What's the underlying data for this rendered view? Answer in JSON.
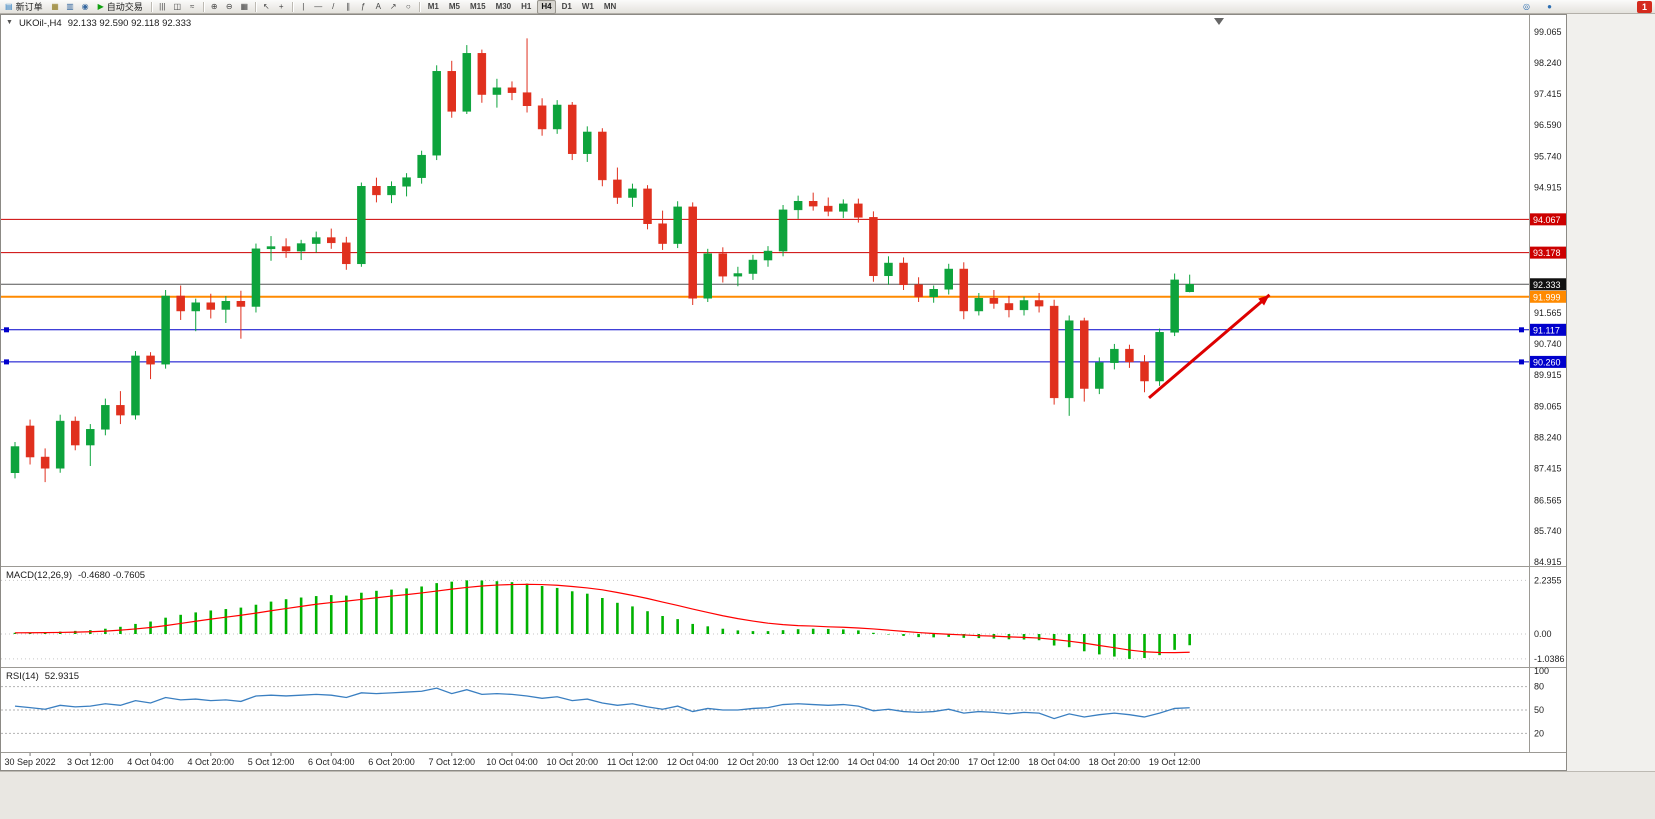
{
  "toolbar": {
    "new_order_label": "新订单",
    "auto_trading_label": "自动交易",
    "icons_left": [
      {
        "name": "charts-window-icon",
        "glyph": "▦",
        "color": "#8f7a1e"
      },
      {
        "name": "profiles-icon",
        "glyph": "▥",
        "color": "#35679f"
      },
      {
        "name": "sound-alert-icon",
        "glyph": "◉",
        "color": "#35679f"
      }
    ],
    "icons_chart_type": [
      {
        "name": "bar-chart-icon",
        "glyph": "|||",
        "color": "#444444"
      },
      {
        "name": "candlestick-icon",
        "glyph": "◫",
        "color": "#444444"
      },
      {
        "name": "line-chart-icon",
        "glyph": "≈",
        "color": "#444444"
      }
    ],
    "icons_zoom": [
      {
        "name": "zoom-in-icon",
        "glyph": "⊕",
        "color": "#444444"
      },
      {
        "name": "zoom-out-icon",
        "glyph": "⊖",
        "color": "#444444"
      },
      {
        "name": "tile-windows-icon",
        "glyph": "▦",
        "color": "#444444"
      }
    ],
    "icons_cursor": [
      {
        "name": "cursor-icon",
        "glyph": "↖",
        "color": "#444444"
      },
      {
        "name": "crosshair-icon",
        "glyph": "+",
        "color": "#444444"
      }
    ],
    "icons_draw": [
      {
        "name": "vertical-line-icon",
        "glyph": "|",
        "color": "#444444"
      },
      {
        "name": "horizontal-line-icon",
        "glyph": "—",
        "color": "#444444"
      },
      {
        "name": "trendline-icon",
        "glyph": "/",
        "color": "#444444"
      },
      {
        "name": "channel-icon",
        "glyph": "∥",
        "color": "#444444"
      },
      {
        "name": "fibonacci-icon",
        "glyph": "ƒ",
        "color": "#444444"
      },
      {
        "name": "text-tool-icon",
        "glyph": "A",
        "color": "#444444"
      },
      {
        "name": "arrow-tool-icon",
        "glyph": "↗",
        "color": "#444444"
      },
      {
        "name": "shapes-icon",
        "glyph": "○",
        "color": "#444444"
      }
    ],
    "timeframes": [
      "M1",
      "M5",
      "M15",
      "M30",
      "H1",
      "H4",
      "D1",
      "W1",
      "MN"
    ],
    "active_timeframe": "H4",
    "icons_right": [
      {
        "name": "search-icon",
        "glyph": "◎",
        "color": "#2e6fb2"
      },
      {
        "name": "chat-icon",
        "glyph": "●",
        "color": "#2e6fb2"
      }
    ],
    "badge_count": "1",
    "new_order_icon_glyph": "▤",
    "auto_trading_icon_glyph": "▶"
  },
  "chart": {
    "menu_icon_glyph": "▼",
    "title": "UKOil-,H4",
    "ohlc_text": "92.133 92.590 92.118 92.333",
    "macd_label": "MACD(12,26,9)",
    "macd_values": "-0.4680 -0.7605",
    "rsi_label": "RSI(14)",
    "rsi_value": "52.9315"
  },
  "colors": {
    "bull": "#0da33c",
    "bear": "#e0301e",
    "macd_histogram": "#00b200",
    "macd_signal": "#ff0000",
    "rsi_line": "#3a7fc1",
    "level_red": "#cc0000",
    "level_blue": "#0000cc",
    "level_orange": "#ff8a00",
    "bid_line": "#555555"
  },
  "chart_data": [
    {
      "type": "candlestick",
      "symbol": "UKOil-",
      "period": "H4",
      "last_ohlc": {
        "open": "92.133",
        "high": "92.590",
        "low": "92.118",
        "close": "92.333"
      },
      "ylim": [
        84.81,
        99.47
      ],
      "y_ticks": [
        "99.065",
        "98.240",
        "97.415",
        "96.590",
        "95.740",
        "94.915",
        "91.565",
        "90.740",
        "89.915",
        "89.065",
        "88.240",
        "87.415",
        "86.565",
        "85.740",
        "84.915"
      ],
      "x_labels": [
        "30 Sep 2022",
        "3 Oct 12:00",
        "4 Oct 04:00",
        "4 Oct 20:00",
        "5 Oct 12:00",
        "6 Oct 04:00",
        "6 Oct 20:00",
        "7 Oct 12:00",
        "10 Oct 04:00",
        "10 Oct 20:00",
        "11 Oct 12:00",
        "12 Oct 04:00",
        "12 Oct 20:00",
        "13 Oct 12:00",
        "14 Oct 04:00",
        "14 Oct 20:00",
        "17 Oct 12:00",
        "18 Oct 04:00",
        "18 Oct 20:00",
        "19 Oct 12:00"
      ],
      "x_label_start": 1,
      "x_label_step": 4,
      "candles": [
        [
          87.3,
          88.12,
          87.15,
          88.0
        ],
        [
          88.55,
          88.72,
          87.52,
          87.72
        ],
        [
          87.72,
          87.95,
          87.05,
          87.42
        ],
        [
          87.42,
          88.85,
          87.3,
          88.68
        ],
        [
          88.68,
          88.8,
          87.9,
          88.04
        ],
        [
          88.04,
          88.6,
          87.48,
          88.46
        ],
        [
          88.46,
          89.28,
          88.3,
          89.1
        ],
        [
          89.1,
          89.48,
          88.6,
          88.84
        ],
        [
          88.84,
          90.55,
          88.72,
          90.42
        ],
        [
          90.42,
          90.52,
          89.8,
          90.2
        ],
        [
          90.2,
          92.18,
          90.08,
          92.02
        ],
        [
          92.02,
          92.3,
          91.38,
          91.62
        ],
        [
          91.62,
          91.95,
          91.08,
          91.84
        ],
        [
          91.84,
          92.08,
          91.42,
          91.66
        ],
        [
          91.66,
          92.02,
          91.3,
          91.88
        ],
        [
          91.88,
          92.16,
          90.88,
          91.74
        ],
        [
          91.74,
          93.42,
          91.58,
          93.28
        ],
        [
          93.28,
          93.62,
          92.96,
          93.34
        ],
        [
          93.34,
          93.56,
          93.04,
          93.22
        ],
        [
          93.22,
          93.52,
          92.98,
          93.42
        ],
        [
          93.42,
          93.74,
          93.18,
          93.58
        ],
        [
          93.58,
          93.82,
          93.28,
          93.44
        ],
        [
          93.44,
          93.6,
          92.72,
          92.88
        ],
        [
          92.88,
          95.05,
          92.8,
          94.95
        ],
        [
          94.95,
          95.18,
          94.52,
          94.72
        ],
        [
          94.72,
          95.08,
          94.5,
          94.95
        ],
        [
          94.95,
          95.3,
          94.68,
          95.18
        ],
        [
          95.18,
          95.9,
          95.02,
          95.78
        ],
        [
          95.78,
          98.18,
          95.65,
          98.02
        ],
        [
          98.02,
          98.3,
          96.78,
          96.95
        ],
        [
          96.95,
          98.72,
          96.88,
          98.5
        ],
        [
          98.5,
          98.6,
          97.18,
          97.4
        ],
        [
          97.4,
          97.82,
          97.05,
          97.58
        ],
        [
          97.58,
          97.75,
          97.25,
          97.45
        ],
        [
          97.45,
          98.9,
          96.92,
          97.1
        ],
        [
          97.1,
          97.3,
          96.3,
          96.48
        ],
        [
          96.48,
          97.25,
          96.35,
          97.12
        ],
        [
          97.12,
          97.2,
          95.65,
          95.82
        ],
        [
          95.82,
          96.55,
          95.6,
          96.4
        ],
        [
          96.4,
          96.5,
          94.95,
          95.12
        ],
        [
          95.12,
          95.45,
          94.48,
          94.65
        ],
        [
          94.65,
          95.02,
          94.4,
          94.88
        ],
        [
          94.88,
          94.98,
          93.8,
          93.95
        ],
        [
          93.95,
          94.3,
          93.25,
          93.42
        ],
        [
          93.42,
          94.55,
          93.3,
          94.4
        ],
        [
          94.4,
          94.52,
          91.78,
          91.96
        ],
        [
          91.96,
          93.28,
          91.86,
          93.15
        ],
        [
          93.15,
          93.32,
          92.38,
          92.55
        ],
        [
          92.55,
          92.8,
          92.28,
          92.62
        ],
        [
          92.62,
          93.12,
          92.45,
          92.98
        ],
        [
          92.98,
          93.35,
          92.8,
          93.22
        ],
        [
          93.22,
          94.45,
          93.08,
          94.32
        ],
        [
          94.32,
          94.7,
          94.08,
          94.55
        ],
        [
          94.55,
          94.78,
          94.3,
          94.42
        ],
        [
          94.42,
          94.65,
          94.15,
          94.28
        ],
        [
          94.28,
          94.6,
          94.1,
          94.48
        ],
        [
          94.48,
          94.62,
          93.98,
          94.12
        ],
        [
          94.12,
          94.28,
          92.4,
          92.56
        ],
        [
          92.56,
          93.08,
          92.32,
          92.9
        ],
        [
          92.9,
          93.05,
          92.18,
          92.32
        ],
        [
          92.32,
          92.52,
          91.86,
          92.0
        ],
        [
          92.0,
          92.3,
          91.84,
          92.2
        ],
        [
          92.2,
          92.88,
          92.06,
          92.74
        ],
        [
          92.74,
          92.92,
          91.4,
          91.62
        ],
        [
          91.62,
          92.1,
          91.5,
          91.96
        ],
        [
          91.96,
          92.18,
          91.68,
          91.82
        ],
        [
          91.82,
          92.02,
          91.45,
          91.65
        ],
        [
          91.65,
          92.0,
          91.5,
          91.9
        ],
        [
          91.9,
          92.1,
          91.58,
          91.75
        ],
        [
          91.75,
          91.92,
          89.12,
          89.3
        ],
        [
          89.3,
          91.5,
          88.82,
          91.36
        ],
        [
          91.36,
          91.44,
          89.2,
          89.55
        ],
        [
          89.55,
          90.38,
          89.4,
          90.24
        ],
        [
          90.24,
          90.74,
          90.06,
          90.6
        ],
        [
          90.6,
          90.72,
          90.1,
          90.26
        ],
        [
          90.26,
          90.44,
          89.45,
          89.75
        ],
        [
          89.75,
          91.15,
          89.62,
          91.05
        ],
        [
          91.05,
          92.62,
          90.95,
          92.45
        ],
        [
          92.133,
          92.59,
          92.118,
          92.333
        ]
      ],
      "hlines": [
        {
          "price": 94.067,
          "color": "#cc0000",
          "width": 1,
          "tag": "94.067",
          "tag_color": "#cc0000"
        },
        {
          "price": 93.178,
          "color": "#cc0000",
          "width": 1,
          "tag": "93.178",
          "tag_color": "#cc0000"
        },
        {
          "price": 92.333,
          "color": "#555555",
          "width": 1,
          "tag": "92.333",
          "tag_color": "#111111",
          "role": "bid"
        },
        {
          "price": 91.999,
          "color": "#ff8a00",
          "width": 2,
          "tag": "91.999",
          "tag_color": "#ff8a00"
        },
        {
          "price": 91.117,
          "color": "#0000cc",
          "width": 1,
          "tag": "91.117",
          "tag_color": "#0000cc",
          "handles": true
        },
        {
          "price": 90.26,
          "color": "#0000cc",
          "width": 1,
          "tag": "90.260",
          "tag_color": "#0000cc",
          "handles": true
        }
      ],
      "arrow": {
        "from_index": 75.3,
        "from_price": 89.3,
        "to_index": 83.3,
        "to_price": 92.05,
        "color": "#dd0000"
      }
    },
    {
      "type": "bar",
      "name": "MACD",
      "params": "12,26,9",
      "current_macd": -0.468,
      "current_signal": -0.7605,
      "y_ticks": [
        "2.2355",
        "0.00",
        "-1.0386"
      ],
      "histogram": [
        0.05,
        0.06,
        0.07,
        0.1,
        0.13,
        0.16,
        0.22,
        0.3,
        0.42,
        0.52,
        0.68,
        0.8,
        0.9,
        0.98,
        1.04,
        1.1,
        1.22,
        1.35,
        1.45,
        1.52,
        1.58,
        1.62,
        1.6,
        1.72,
        1.8,
        1.85,
        1.9,
        1.98,
        2.12,
        2.18,
        2.2355,
        2.23,
        2.2,
        2.16,
        2.1,
        2.0,
        1.92,
        1.78,
        1.68,
        1.5,
        1.3,
        1.15,
        0.95,
        0.75,
        0.62,
        0.42,
        0.32,
        0.22,
        0.15,
        0.12,
        0.12,
        0.16,
        0.2,
        0.22,
        0.21,
        0.19,
        0.15,
        0.05,
        -0.02,
        -0.08,
        -0.13,
        -0.14,
        -0.12,
        -0.16,
        -0.17,
        -0.19,
        -0.22,
        -0.23,
        -0.26,
        -0.48,
        -0.55,
        -0.72,
        -0.85,
        -0.94,
        -1.0386,
        -1.0,
        -0.88,
        -0.66,
        -0.468
      ],
      "signal": [
        0.05,
        0.052,
        0.056,
        0.065,
        0.078,
        0.095,
        0.12,
        0.16,
        0.21,
        0.27,
        0.35,
        0.44,
        0.53,
        0.62,
        0.7,
        0.78,
        0.87,
        0.97,
        1.06,
        1.15,
        1.24,
        1.31,
        1.37,
        1.44,
        1.51,
        1.58,
        1.64,
        1.71,
        1.79,
        1.87,
        1.94,
        2.0,
        2.04,
        2.06,
        2.07,
        2.06,
        2.03,
        1.98,
        1.92,
        1.84,
        1.73,
        1.61,
        1.48,
        1.33,
        1.19,
        1.04,
        0.9,
        0.76,
        0.64,
        0.54,
        0.45,
        0.39,
        0.35,
        0.33,
        0.3,
        0.28,
        0.25,
        0.21,
        0.16,
        0.11,
        0.06,
        0.02,
        -0.01,
        -0.04,
        -0.07,
        -0.09,
        -0.12,
        -0.14,
        -0.17,
        -0.23,
        -0.3,
        -0.38,
        -0.48,
        -0.57,
        -0.67,
        -0.74,
        -0.77,
        -0.775,
        -0.7605
      ]
    },
    {
      "type": "line",
      "name": "RSI",
      "params": "14",
      "current": 52.9315,
      "levels": [
        80,
        50,
        20
      ],
      "y_ticks": [
        "100",
        "80",
        "50",
        "20"
      ],
      "values": [
        55,
        53,
        51,
        56,
        54,
        55,
        58,
        56,
        62,
        59,
        66,
        63,
        64,
        62,
        63,
        61,
        68,
        69,
        68,
        69,
        70,
        69,
        66,
        72,
        71,
        72,
        73,
        74,
        78,
        71,
        76,
        70,
        71,
        70,
        68,
        65,
        67,
        62,
        64,
        59,
        56,
        58,
        54,
        51,
        55,
        48,
        52,
        50,
        50,
        52,
        53,
        57,
        58,
        57,
        56,
        57,
        55,
        49,
        51,
        48,
        47,
        48,
        51,
        46,
        48,
        47,
        45,
        47,
        46,
        39,
        45,
        41,
        44,
        46,
        44,
        41,
        46,
        52,
        52.93
      ]
    }
  ]
}
